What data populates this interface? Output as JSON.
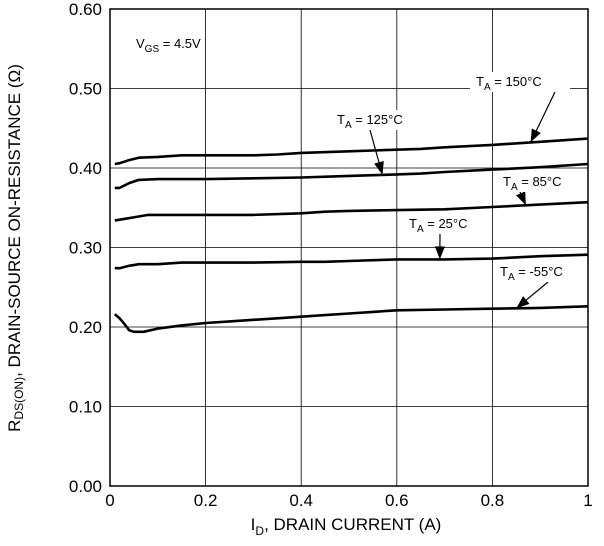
{
  "chart_data": {
    "type": "line",
    "xlabel_main": "I",
    "xlabel_sub": "D",
    "xlabel_rest": ", DRAIN CURRENT (A)",
    "ylabel_main": "R",
    "ylabel_sub": "DS(ON)",
    "ylabel_rest": ", DRAIN-SOURCE ON-RESISTANCE (Ω)",
    "xlim": [
      0,
      1
    ],
    "ylim": [
      0,
      0.6
    ],
    "grid": true,
    "x_ticks": [
      0,
      0.2,
      0.4,
      0.6,
      0.8,
      1
    ],
    "x_tick_labels": [
      "0",
      "0.2",
      "0.4",
      "0.6",
      "0.8",
      "1"
    ],
    "y_ticks": [
      0,
      0.1,
      0.2,
      0.3,
      0.4,
      0.5,
      0.6
    ],
    "y_tick_labels": [
      "0.00",
      "0.10",
      "0.20",
      "0.30",
      "0.40",
      "0.50",
      "0.60"
    ],
    "vgs_label": {
      "main": "V",
      "sub": "GS",
      "rest": " = 4.5V"
    },
    "series": [
      {
        "name": "T_A = 150°C",
        "label_main": "T",
        "label_sub": "A",
        "label_rest": " = 150°C",
        "x": [
          0.01,
          0.02,
          0.04,
          0.06,
          0.1,
          0.15,
          0.2,
          0.3,
          0.35,
          0.4,
          0.5,
          0.55,
          0.6,
          0.65,
          0.7,
          0.8,
          0.9,
          1.0
        ],
        "y": [
          0.405,
          0.406,
          0.41,
          0.413,
          0.414,
          0.416,
          0.416,
          0.416,
          0.417,
          0.419,
          0.421,
          0.422,
          0.423,
          0.424,
          0.426,
          0.429,
          0.433,
          0.437
        ]
      },
      {
        "name": "T_A = 125°C",
        "label_main": "T",
        "label_sub": "A",
        "label_rest": " = 125°C",
        "x": [
          0.01,
          0.02,
          0.04,
          0.06,
          0.1,
          0.2,
          0.3,
          0.4,
          0.5,
          0.55,
          0.6,
          0.65,
          0.7,
          0.8,
          0.9,
          1.0
        ],
        "y": [
          0.375,
          0.375,
          0.381,
          0.385,
          0.386,
          0.386,
          0.387,
          0.388,
          0.39,
          0.391,
          0.392,
          0.393,
          0.395,
          0.398,
          0.401,
          0.405
        ]
      },
      {
        "name": "T_A = 85°C",
        "label_main": "T",
        "label_sub": "A",
        "label_rest": " = 85°C",
        "x": [
          0.01,
          0.02,
          0.04,
          0.06,
          0.08,
          0.15,
          0.2,
          0.3,
          0.4,
          0.45,
          0.5,
          0.6,
          0.7,
          0.8,
          0.9,
          1.0
        ],
        "y": [
          0.334,
          0.335,
          0.337,
          0.339,
          0.341,
          0.341,
          0.341,
          0.341,
          0.343,
          0.345,
          0.346,
          0.347,
          0.348,
          0.351,
          0.354,
          0.357
        ]
      },
      {
        "name": "T_A = 25°C",
        "label_main": "T",
        "label_sub": "A",
        "label_rest": " = 25°C",
        "x": [
          0.01,
          0.02,
          0.04,
          0.06,
          0.1,
          0.15,
          0.2,
          0.3,
          0.4,
          0.45,
          0.5,
          0.55,
          0.6,
          0.7,
          0.8,
          0.9,
          1.0
        ],
        "y": [
          0.274,
          0.274,
          0.277,
          0.279,
          0.279,
          0.281,
          0.281,
          0.281,
          0.282,
          0.282,
          0.283,
          0.284,
          0.285,
          0.285,
          0.286,
          0.289,
          0.291
        ]
      },
      {
        "name": "T_A = -55°C",
        "label_main": "T",
        "label_sub": "A",
        "label_rest": " = -55°C",
        "x": [
          0.01,
          0.02,
          0.03,
          0.04,
          0.05,
          0.07,
          0.1,
          0.15,
          0.2,
          0.25,
          0.3,
          0.35,
          0.4,
          0.45,
          0.5,
          0.55,
          0.6,
          0.7,
          0.8,
          0.9,
          1.0
        ],
        "y": [
          0.216,
          0.211,
          0.204,
          0.196,
          0.194,
          0.194,
          0.198,
          0.202,
          0.205,
          0.207,
          0.209,
          0.211,
          0.213,
          0.215,
          0.217,
          0.219,
          0.221,
          0.222,
          0.223,
          0.224,
          0.226
        ]
      }
    ]
  }
}
